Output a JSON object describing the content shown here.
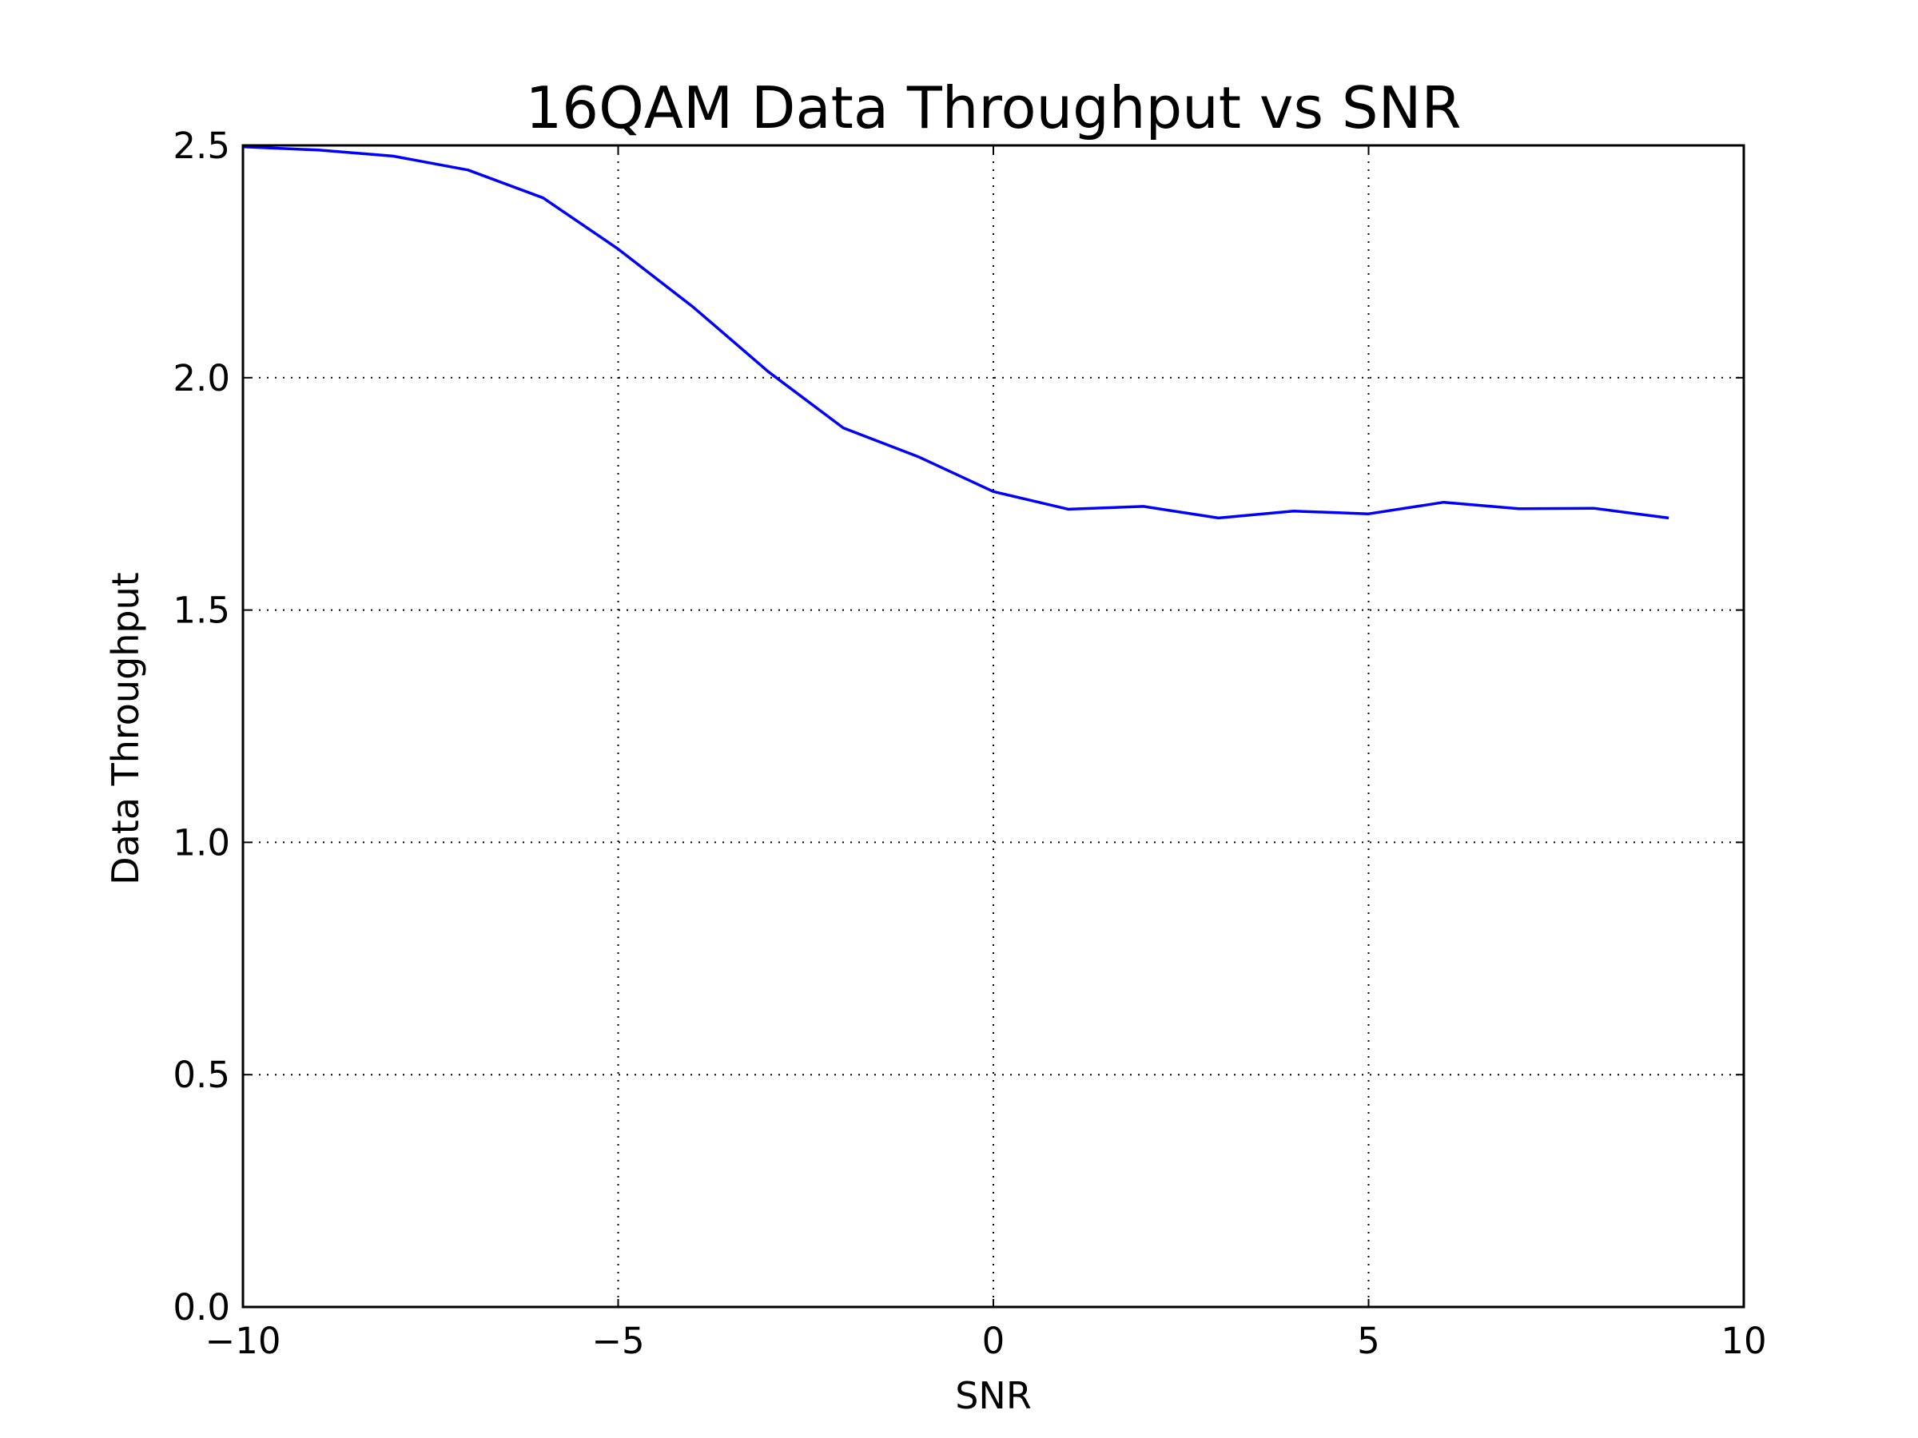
{
  "chart_data": {
    "type": "line",
    "title": "16QAM Data Throughput vs SNR",
    "xlabel": "SNR",
    "ylabel": "Data Throughput",
    "xlim": [
      -10,
      10
    ],
    "ylim": [
      0.0,
      2.5
    ],
    "xticks": [
      -10,
      -5,
      0,
      5,
      10
    ],
    "xtick_labels": [
      "−10",
      "−5",
      "0",
      "5",
      "10"
    ],
    "yticks": [
      0.0,
      0.5,
      1.0,
      1.5,
      2.0,
      2.5
    ],
    "ytick_labels": [
      "0.0",
      "0.5",
      "1.0",
      "1.5",
      "2.0",
      "2.5"
    ],
    "grid": true,
    "series": [
      {
        "color": "#0000ff",
        "x": [
          -10,
          -9,
          -8,
          -7,
          -6,
          -5,
          -4,
          -3,
          -2,
          -1,
          0,
          1,
          2,
          3,
          4,
          5,
          6,
          7,
          8,
          9
        ],
        "y": [
          2.497,
          2.49,
          2.477,
          2.447,
          2.387,
          2.277,
          2.152,
          2.013,
          1.892,
          1.83,
          1.755,
          1.717,
          1.723,
          1.698,
          1.713,
          1.707,
          1.732,
          1.718,
          1.719,
          1.698
        ]
      }
    ]
  }
}
